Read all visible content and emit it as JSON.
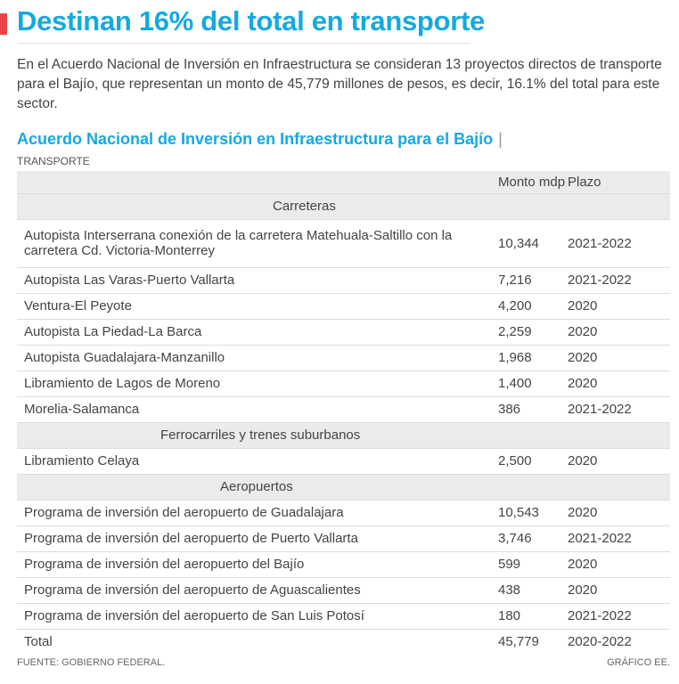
{
  "title": "Destinan 16% del total en transporte",
  "lead": "En el Acuerdo Nacional de Inversión en Infraestructura se consideran 13 proyectos directos de transporte para el Bajío, que representan un monto de 45,779 millones de pesos, es decir, 16.1% del total para este sector.",
  "table_title": "Acuerdo Nacional de Inversión en Infraestructura para el Bajío",
  "table_title_sep": "|",
  "table_subtitle": "TRANSPORTE",
  "headers": {
    "monto": "Monto mdp",
    "plazo": "Plazo"
  },
  "sections": [
    {
      "label": "Carreteras",
      "rows": [
        {
          "name": "Autopista Interserrana conexión de la carretera Matehuala-Saltillo con la carretera Cd. Victoria-Monterrey",
          "monto": "10,344",
          "plazo": "2021-2022"
        },
        {
          "name": "Autopista Las Varas-Puerto Vallarta",
          "monto": "7,216",
          "plazo": "2021-2022"
        },
        {
          "name": "Ventura-El Peyote",
          "monto": "4,200",
          "plazo": "2020"
        },
        {
          "name": "Autopista La Piedad-La Barca",
          "monto": "2,259",
          "plazo": "2020"
        },
        {
          "name": "Autopista Guadalajara-Manzanillo",
          "monto": "1,968",
          "plazo": "2020"
        },
        {
          "name": "Libramiento de Lagos de Moreno",
          "monto": "1,400",
          "plazo": "2020"
        },
        {
          "name": "Morelia-Salamanca",
          "monto": "386",
          "plazo": "2021-2022"
        }
      ]
    },
    {
      "label": "Ferrocarriles y trenes suburbanos",
      "rows": [
        {
          "name": "Libramiento Celaya",
          "monto": "2,500",
          "plazo": "2020"
        }
      ]
    },
    {
      "label": "Aeropuertos",
      "rows": [
        {
          "name": "Programa de inversión del aeropuerto de Guadalajara",
          "monto": "10,543",
          "plazo": "2020"
        },
        {
          "name": "Programa de inversión del aeropuerto de Puerto Vallarta",
          "monto": "3,746",
          "plazo": "2021-2022"
        },
        {
          "name": "Programa de inversión del aeropuerto del Bajío",
          "monto": "599",
          "plazo": "2020"
        },
        {
          "name": "Programa de inversión del aeropuerto de Aguascalientes",
          "monto": "438",
          "plazo": "2020"
        },
        {
          "name": "Programa de inversión del aeropuerto de San Luis Potosí",
          "monto": "180",
          "plazo": "2021-2022"
        }
      ]
    }
  ],
  "total": {
    "name": "Total",
    "monto": "45,779",
    "plazo": "2020-2022"
  },
  "source": "FUENTE: GOBIERNO FEDERAL.",
  "credit": "GRÁFICO EE."
}
